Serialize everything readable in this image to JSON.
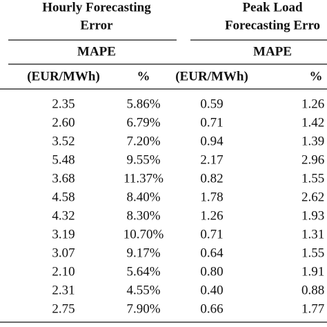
{
  "table": {
    "groups": [
      [
        "Hourly Forecasting",
        "Error"
      ],
      [
        "Peak Load",
        "Forecasting Erro"
      ]
    ],
    "metric": [
      "MAPE",
      "MAPE"
    ],
    "units": [
      "(EUR/MWh)",
      "%",
      "(EUR/MWh)",
      "%"
    ],
    "rows": [
      [
        "2.35",
        "5.86%",
        "0.59",
        "1.26"
      ],
      [
        "2.60",
        "6.79%",
        "0.71",
        "1.42"
      ],
      [
        "3.52",
        "7.20%",
        "0.94",
        "1.39"
      ],
      [
        "5.48",
        "9.55%",
        "2.17",
        "2.96"
      ],
      [
        "3.68",
        "11.37%",
        "0.82",
        "1.55"
      ],
      [
        "4.58",
        "8.40%",
        "1.78",
        "2.62"
      ],
      [
        "4.32",
        "8.30%",
        "1.26",
        "1.93"
      ],
      [
        "3.19",
        "10.70%",
        "0.71",
        "1.31"
      ],
      [
        "3.07",
        "9.17%",
        "0.64",
        "1.55"
      ],
      [
        "2.10",
        "5.64%",
        "0.80",
        "1.91"
      ],
      [
        "2.31",
        "4.55%",
        "0.40",
        "0.88"
      ],
      [
        "2.75",
        "7.90%",
        "0.66",
        "1.77"
      ]
    ]
  }
}
